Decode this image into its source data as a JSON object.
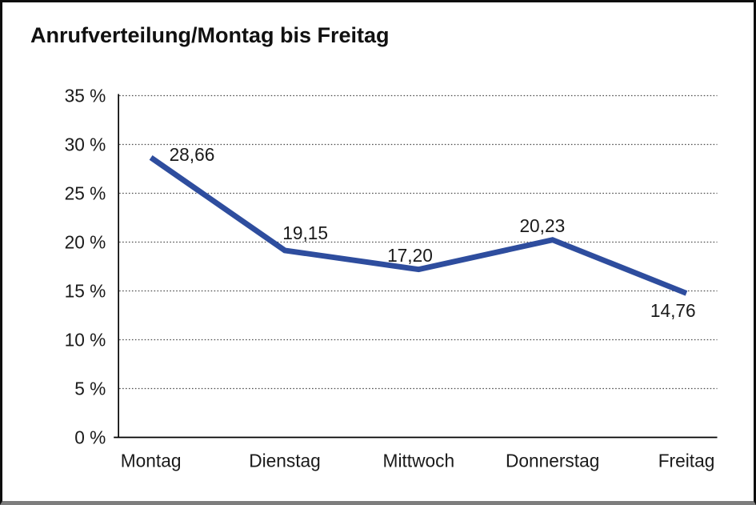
{
  "window": {
    "background": "#ffffff",
    "frame_border_color": "#0d0d0d",
    "frame_shadow_color": "#7d7d7d"
  },
  "chart_data": {
    "type": "line",
    "title": "Anrufverteilung/Montag bis Freitag",
    "categories": [
      "Montag",
      "Dienstag",
      "Mittwoch",
      "Donnerstag",
      "Freitag"
    ],
    "values": [
      28.66,
      19.15,
      17.2,
      20.23,
      14.76
    ],
    "point_labels": [
      "28,66",
      "19,15",
      "17,20",
      "20,23",
      "14,76"
    ],
    "xlabel": "",
    "ylabel": "",
    "ylim": [
      0,
      35
    ],
    "ytick_step": 5,
    "ytick_suffix": " %",
    "ytick_labels": [
      "0 %",
      "5 %",
      "10 %",
      "15 %",
      "20 %",
      "25 %",
      "30 %",
      "35 %"
    ],
    "grid": "horizontal-dotted",
    "legend": "none",
    "line_color": "#2E4D9E",
    "line_width": 7,
    "axis_color": "#000000",
    "gridline_color": "#4d4d4d",
    "label_color": "#1a1a1a"
  }
}
